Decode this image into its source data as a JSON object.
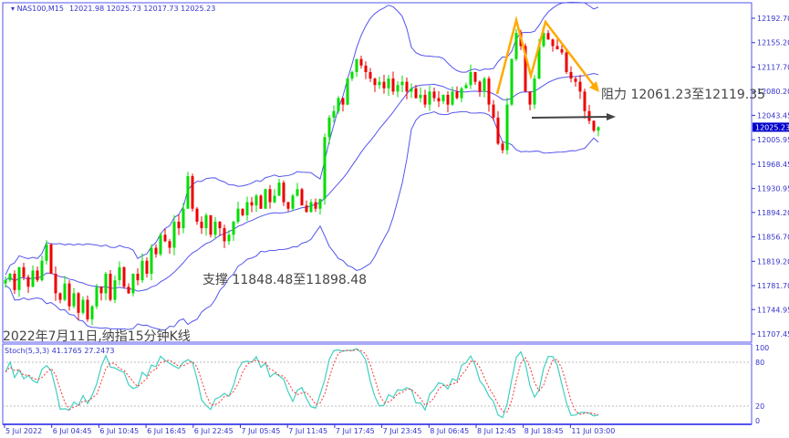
{
  "header": {
    "symbol": "NAS100,M15",
    "ohlc": "12021.98 12025.73 12017.73 12025.23"
  },
  "colors": {
    "band": "#5555ee",
    "bull": "#00dd00",
    "bear": "#ee0000",
    "stoch_k": "#40d0c0",
    "stoch_d": "#ff3333",
    "trend": "#ffaa00",
    "arrow": "#444444",
    "axis": "#3333cc",
    "price_tag_bg": "#0000cc"
  },
  "chart_data": [
    {
      "type": "candlestick",
      "title": "2022年7月11日,纳指15分钟K线",
      "symbol": "NAS100,M15",
      "overlay": "Bollinger Bands",
      "ylim": [
        11707.45,
        12192.7
      ],
      "y_ticks": [
        "12192.70",
        "12155.20",
        "12117.70",
        "12080.20",
        "12043.45",
        "12005.95",
        "11968.45",
        "11930.95",
        "11894.20",
        "11856.70",
        "11819.20",
        "11781.70",
        "11744.95",
        "11707.45"
      ],
      "x_ticks": [
        "5 Jul 2022",
        "6 Jul 04:45",
        "6 Jul 10:45",
        "6 Jul 16:45",
        "6 Jul 22:45",
        "7 Jul 05:45",
        "7 Jul 11:45",
        "7 Jul 17:45",
        "7 Jul 23:45",
        "8 Jul 06:45",
        "8 Jul 12:45",
        "8 Jul 18:45",
        "11 Jul 03:00"
      ],
      "current_price": "12025.23",
      "approx_closes": [
        11790,
        11800,
        11775,
        11810,
        11795,
        11780,
        11805,
        11790,
        11820,
        11845,
        11800,
        11770,
        11760,
        11785,
        11750,
        11770,
        11740,
        11760,
        11730,
        11750,
        11780,
        11770,
        11800,
        11760,
        11790,
        11810,
        11780,
        11770,
        11800,
        11790,
        11820,
        11800,
        11840,
        11830,
        11860,
        11850,
        11840,
        11880,
        11870,
        11900,
        11950,
        11900,
        11880,
        11870,
        11890,
        11860,
        11880,
        11870,
        11850,
        11860,
        11880,
        11900,
        11890,
        11910,
        11905,
        11920,
        11900,
        11930,
        11910,
        11920,
        11940,
        11910,
        11900,
        11920,
        11930,
        11905,
        11895,
        11910,
        11900,
        11915,
        12010,
        12040,
        12050,
        12070,
        12060,
        12100,
        12110,
        12130,
        12120,
        12110,
        12100,
        12090,
        12095,
        12085,
        12100,
        12080,
        12090,
        12095,
        12080,
        12085,
        12070,
        12075,
        12060,
        12080,
        12070,
        12065,
        12075,
        12060,
        12080,
        12070,
        12085,
        12090,
        12110,
        12095,
        12080,
        12100,
        12060,
        12040,
        12000,
        11990,
        12060,
        12130,
        12170,
        12150,
        12080,
        12060,
        12100,
        12150,
        12170,
        12160,
        12150,
        12145,
        12140,
        12110,
        12100,
        12095,
        12080,
        12050,
        12035,
        12020,
        12025.23
      ],
      "annotations": {
        "resistance": "阻力 12061.23至12119.35",
        "support": "支撑 11848.48至11898.48"
      }
    },
    {
      "type": "line",
      "indicator": "Stoch(5,3,3)",
      "label": "Stoch(5,3,3) 41.1765 27.2473",
      "ylim": [
        0,
        100
      ],
      "y_ticks": [
        "100",
        "80",
        "20",
        "0"
      ]
    }
  ]
}
